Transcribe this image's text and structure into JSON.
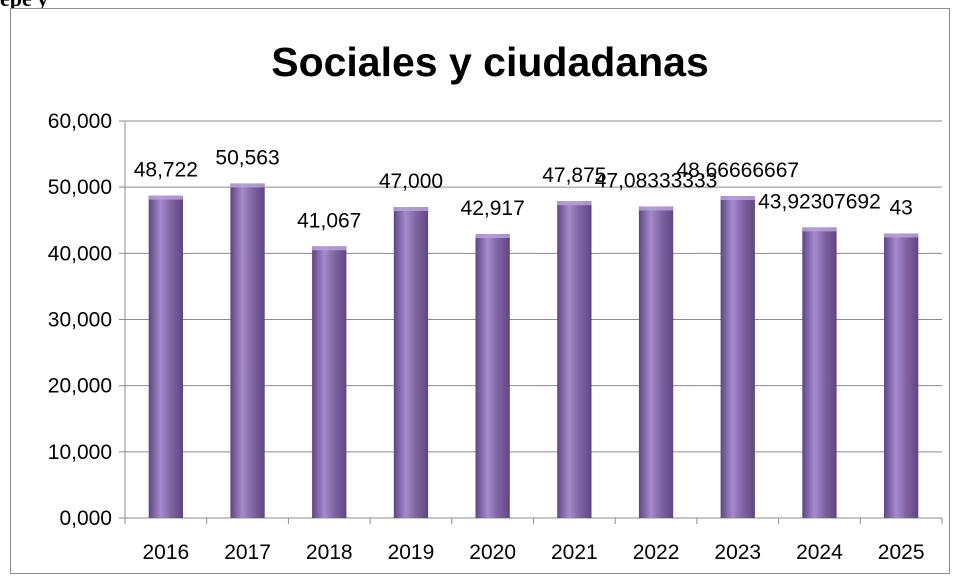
{
  "heading_fragment": "epe                        y",
  "chart_data": {
    "type": "bar",
    "title": "Sociales y ciudadanas",
    "xlabel": "",
    "ylabel": "",
    "categories": [
      "2016",
      "2017",
      "2018",
      "2019",
      "2020",
      "2021",
      "2022",
      "2023",
      "2024",
      "2025"
    ],
    "values": [
      48.722,
      50.563,
      41.067,
      47.0,
      42.917,
      47.875,
      47.08333333,
      48.66666667,
      43.92307692,
      43
    ],
    "data_labels": [
      "48,722",
      "50,563",
      "41,067",
      "47,000",
      "42,917",
      "47,875",
      "47,08333333",
      "48,66666667",
      "43,92307692",
      "43"
    ],
    "ylim": [
      0,
      60
    ],
    "yticks": [
      0,
      10,
      20,
      30,
      40,
      50,
      60
    ],
    "ytick_labels": [
      "0,000",
      "10,000",
      "20,000",
      "30,000",
      "40,000",
      "50,000",
      "60,000"
    ],
    "grid": true,
    "legend": "none",
    "bar_color": "#8064a2",
    "bar_highlight": "#a58bcc",
    "bar_shadow": "#5e4683"
  }
}
